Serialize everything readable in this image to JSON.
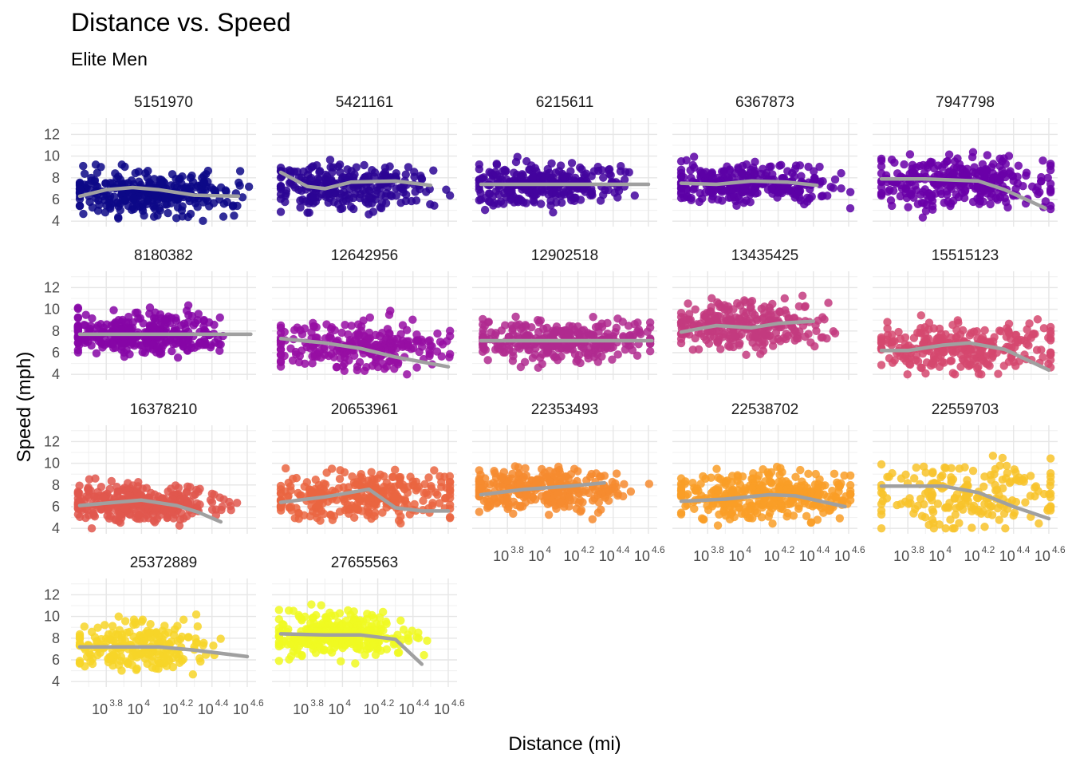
{
  "chart_data": {
    "type": "scatter",
    "title": "Distance vs. Speed",
    "subtitle": "Elite Men",
    "xlabel": "Distance (mi)",
    "ylabel": "Speed (mph)",
    "x_scale": "log10",
    "x_tick_exponents": [
      3.8,
      4.0,
      4.2,
      4.4,
      4.6
    ],
    "x_tick_labels": [
      "10^3.8",
      "10^4",
      "10^4.2",
      "10^4.4",
      "10^4.6"
    ],
    "xlim_log10": [
      3.6,
      4.65
    ],
    "ylim": [
      3.5,
      13.5
    ],
    "y_ticks": [
      4,
      6,
      8,
      10,
      12
    ],
    "grid": true,
    "smooth_color": "#a0a0a0",
    "panels": [
      {
        "id": "5151970",
        "color": "#0d0887",
        "n": 300,
        "x_range": [
          3.65,
          4.42
        ],
        "y_mean": 6.6,
        "y_sd": 1.1,
        "smooth": [
          [
            3.65,
            6.3
          ],
          [
            3.8,
            6.9
          ],
          [
            3.95,
            7.1
          ],
          [
            4.1,
            6.9
          ],
          [
            4.3,
            6.4
          ],
          [
            4.55,
            6.3
          ]
        ]
      },
      {
        "id": "5421161",
        "color": "#2c0594",
        "n": 260,
        "x_range": [
          3.65,
          4.45
        ],
        "y_mean": 7.3,
        "y_sd": 1.1,
        "smooth": [
          [
            3.65,
            8.5
          ],
          [
            3.8,
            7.2
          ],
          [
            3.9,
            7.0
          ],
          [
            4.05,
            7.6
          ],
          [
            4.3,
            7.7
          ],
          [
            4.5,
            7.3
          ]
        ]
      },
      {
        "id": "6215611",
        "color": "#43039e",
        "n": 300,
        "x_range": [
          3.64,
          4.36
        ],
        "y_mean": 7.4,
        "y_sd": 0.9,
        "smooth": [
          [
            3.65,
            7.4
          ],
          [
            4.6,
            7.4
          ]
        ]
      },
      {
        "id": "6367873",
        "color": "#5c01a6",
        "n": 280,
        "x_range": [
          3.65,
          4.42
        ],
        "y_mean": 7.5,
        "y_sd": 0.9,
        "smooth": [
          [
            3.65,
            7.5
          ],
          [
            3.85,
            7.4
          ],
          [
            4.05,
            7.7
          ],
          [
            4.25,
            7.6
          ],
          [
            4.42,
            7.3
          ]
        ]
      },
      {
        "id": "7947798",
        "color": "#6a00a8",
        "n": 300,
        "x_range": [
          3.65,
          4.52
        ],
        "y_mean": 7.6,
        "y_sd": 1.2,
        "smooth": [
          [
            3.65,
            7.9
          ],
          [
            3.9,
            7.9
          ],
          [
            4.2,
            7.7
          ],
          [
            4.35,
            6.9
          ],
          [
            4.58,
            5.2
          ]
        ]
      },
      {
        "id": "8180382",
        "color": "#8606a6",
        "n": 320,
        "x_range": [
          3.64,
          4.35
        ],
        "y_mean": 7.7,
        "y_sd": 1.0,
        "smooth": [
          [
            3.65,
            7.7
          ],
          [
            4.62,
            7.7
          ]
        ]
      },
      {
        "id": "12642956",
        "color": "#960ea3",
        "n": 260,
        "x_range": [
          3.65,
          4.52
        ],
        "y_mean": 6.6,
        "y_sd": 1.1,
        "smooth": [
          [
            3.65,
            7.3
          ],
          [
            3.9,
            6.9
          ],
          [
            4.1,
            6.4
          ],
          [
            4.3,
            5.6
          ],
          [
            4.6,
            4.7
          ]
        ]
      },
      {
        "id": "12902518",
        "color": "#b02a8f",
        "n": 300,
        "x_range": [
          3.66,
          4.5
        ],
        "y_mean": 7.1,
        "y_sd": 0.9,
        "smooth": [
          [
            3.65,
            7.1
          ],
          [
            4.62,
            7.1
          ]
        ]
      },
      {
        "id": "13435425",
        "color": "#c33b7f",
        "n": 270,
        "x_range": [
          3.65,
          4.38
        ],
        "y_mean": 8.4,
        "y_sd": 1.1,
        "smooth": [
          [
            3.65,
            7.9
          ],
          [
            3.85,
            8.5
          ],
          [
            4.05,
            8.3
          ],
          [
            4.2,
            8.7
          ],
          [
            4.4,
            8.9
          ]
        ]
      },
      {
        "id": "15515123",
        "color": "#d5486f",
        "n": 280,
        "x_range": [
          3.65,
          4.55
        ],
        "y_mean": 6.5,
        "y_sd": 1.1,
        "smooth": [
          [
            3.65,
            6.2
          ],
          [
            3.8,
            6.2
          ],
          [
            4.0,
            6.7
          ],
          [
            4.15,
            6.9
          ],
          [
            4.35,
            6.3
          ],
          [
            4.6,
            4.4
          ]
        ]
      },
      {
        "id": "16378210",
        "color": "#e0574e",
        "n": 320,
        "x_range": [
          3.64,
          4.38
        ],
        "y_mean": 6.3,
        "y_sd": 0.9,
        "smooth": [
          [
            3.65,
            6.1
          ],
          [
            3.85,
            6.4
          ],
          [
            4.0,
            6.6
          ],
          [
            4.2,
            6.1
          ],
          [
            4.32,
            5.5
          ],
          [
            4.45,
            4.6
          ]
        ]
      },
      {
        "id": "20653961",
        "color": "#ea6541",
        "n": 300,
        "x_range": [
          3.65,
          4.55
        ],
        "y_mean": 6.9,
        "y_sd": 1.1,
        "smooth": [
          [
            3.65,
            6.4
          ],
          [
            3.9,
            6.9
          ],
          [
            4.15,
            7.6
          ],
          [
            4.3,
            5.9
          ],
          [
            4.45,
            5.6
          ],
          [
            4.6,
            5.6
          ]
        ]
      },
      {
        "id": "22353493",
        "color": "#f68b2f",
        "n": 280,
        "x_range": [
          3.64,
          4.37
        ],
        "y_mean": 7.6,
        "y_sd": 1.0,
        "smooth": [
          [
            3.65,
            7.1
          ],
          [
            3.9,
            7.6
          ],
          [
            4.15,
            7.9
          ],
          [
            4.35,
            8.2
          ]
        ]
      },
      {
        "id": "22538702",
        "color": "#f99e27",
        "n": 340,
        "x_range": [
          3.65,
          4.55
        ],
        "y_mean": 7.0,
        "y_sd": 1.1,
        "smooth": [
          [
            3.65,
            6.5
          ],
          [
            3.9,
            6.7
          ],
          [
            4.15,
            7.1
          ],
          [
            4.3,
            7.0
          ],
          [
            4.58,
            6.0
          ]
        ]
      },
      {
        "id": "22559703",
        "color": "#f8c32a",
        "n": 200,
        "x_range": [
          3.65,
          4.58
        ],
        "y_mean": 7.1,
        "y_sd": 1.5,
        "smooth": [
          [
            3.65,
            7.9
          ],
          [
            4.0,
            7.9
          ],
          [
            4.2,
            7.3
          ],
          [
            4.4,
            6.0
          ],
          [
            4.6,
            4.9
          ]
        ]
      },
      {
        "id": "25372889",
        "color": "#f7d528",
        "n": 220,
        "x_range": [
          3.65,
          4.3
        ],
        "y_mean": 7.3,
        "y_sd": 1.1,
        "smooth": [
          [
            3.65,
            7.2
          ],
          [
            3.9,
            7.2
          ],
          [
            4.1,
            7.2
          ],
          [
            4.3,
            6.9
          ],
          [
            4.6,
            6.3
          ]
        ]
      },
      {
        "id": "27655563",
        "color": "#f0f921",
        "n": 300,
        "x_range": [
          3.64,
          4.3
        ],
        "y_mean": 8.3,
        "y_sd": 1.0,
        "smooth": [
          [
            3.65,
            8.4
          ],
          [
            3.9,
            8.3
          ],
          [
            4.1,
            8.3
          ],
          [
            4.3,
            7.9
          ],
          [
            4.45,
            5.6
          ]
        ]
      }
    ]
  }
}
